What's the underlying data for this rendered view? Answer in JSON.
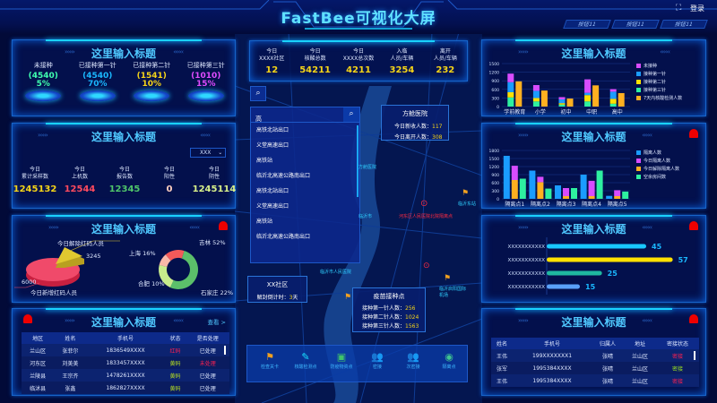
{
  "header": {
    "title": "FastBee可视化大屏",
    "login": "登录",
    "buttons": [
      "按钮11",
      "按钮11",
      "按钮11"
    ]
  },
  "colors": {
    "accent": "#4fc8ff",
    "yellow": "#f5d418",
    "red": "#ff3a5a",
    "green": "#5fc96a",
    "bg": "#020a38"
  },
  "vaccine": {
    "title": "这里输入标题",
    "items": [
      {
        "label": "未接种",
        "count": "(4540)",
        "pct": "5%",
        "color": "#3fffb0"
      },
      {
        "label": "已接种第一针",
        "count": "(4540)",
        "pct": "70%",
        "color": "#1ab8ff"
      },
      {
        "label": "已接种第二针",
        "count": "(1541)",
        "pct": "10%",
        "color": "#f5d418"
      },
      {
        "label": "已接种第三针",
        "count": "(1010)",
        "pct": "15%",
        "color": "#e04cff"
      }
    ]
  },
  "samples": {
    "title": "这里输入标题",
    "select": "XXX",
    "items": [
      {
        "l1": "今日",
        "l2": "累计采样数",
        "value": "1245132",
        "color": "#f5d418"
      },
      {
        "l1": "今日",
        "l2": "上机数",
        "value": "12544",
        "color": "#ff4a5e"
      },
      {
        "l1": "今日",
        "l2": "报告数",
        "value": "12345",
        "color": "#4fc46a"
      },
      {
        "l1": "今日",
        "l2": "阳性",
        "value": "0",
        "color": "#ffd0c0"
      },
      {
        "l1": "今日",
        "l2": "阴性",
        "value": "1245114",
        "color": "#d8f08a"
      }
    ]
  },
  "redcode": {
    "title": "这里输入标题",
    "pie": {
      "added_label": "今日新增红码人员",
      "added": 6000,
      "removed_label": "今日解除红码人员",
      "removed": 3245
    },
    "donut": [
      {
        "name": "吉林",
        "pct": 52,
        "color": "#5bbf6a"
      },
      {
        "name": "石家庄",
        "pct": 22,
        "color": "#c8ec8c"
      },
      {
        "name": "合肥",
        "pct": 10,
        "color": "#f8b8a8"
      },
      {
        "name": "上海",
        "pct": 16,
        "color": "#f25a5a"
      }
    ]
  },
  "lefttable": {
    "title": "这里输入标题",
    "view": "查看 >",
    "headers": [
      "地区",
      "姓名",
      "手机号",
      "状态",
      "是否处理"
    ],
    "rows": [
      [
        "兰山区",
        "张菲尔",
        "1836549XXXX",
        "红码",
        "已处理"
      ],
      [
        "河东区",
        "刘美美",
        "1833457XXXX",
        "黄码",
        "未处理"
      ],
      [
        "兰陵县",
        "王宗齐",
        "1478261XXXX",
        "黄码",
        "已处理"
      ],
      [
        "临沭县",
        "张鑫",
        "1862827XXXX",
        "黄码",
        "已处理"
      ]
    ]
  },
  "stats": [
    {
      "l1": "今日",
      "l2": "XXXX社区",
      "value": "12"
    },
    {
      "l1": "今日",
      "l2": "核酸总数",
      "value": "54211"
    },
    {
      "l1": "今日",
      "l2": "XXXX总次数",
      "value": "4211"
    },
    {
      "l1": "入临",
      "l2": "人员/车辆",
      "value": "3254"
    },
    {
      "l1": "离开",
      "l2": "人员/车辆",
      "value": "232"
    }
  ],
  "search": {
    "value": "高",
    "results": [
      "高铁北站出口",
      "义堂高速出口",
      "高铁站",
      "临沂北高速公路南出口",
      "高铁北站出口",
      "义堂高速出口",
      "高铁站",
      "临沂北高速公路南出口"
    ]
  },
  "popups": {
    "hospital": {
      "title": "方舱医院",
      "r1_label": "今日新收人数：",
      "r1": "117",
      "r2_label": "今日离开人数：",
      "r2": "308"
    },
    "community": {
      "title": "XX社区",
      "label": "解封倒计时：",
      "value": "3",
      "unit": "天"
    },
    "vaccination": {
      "title": "疫苗接种点",
      "rows": [
        {
          "label": "接种第一针人数：",
          "value": "256"
        },
        {
          "label": "接种第二针人数：",
          "value": "1024"
        },
        {
          "label": "接种第三针人数：",
          "value": "1563"
        }
      ]
    }
  },
  "map": {
    "labels": [
      "方舱医院",
      "河东区人民医院北院隔离点",
      "临沂东站",
      "临沂市",
      "临沂市人民医院",
      "临沂启阳国际机场"
    ]
  },
  "toolbar": [
    {
      "label": "检查关卡",
      "icon": "flag-icon",
      "color": "#f0a020"
    },
    {
      "label": "核酸检测点",
      "icon": "test-tube-icon",
      "color": "#19e0ff"
    },
    {
      "label": "防疫物资点",
      "icon": "box-icon",
      "color": "#3fc46a"
    },
    {
      "label": "密接",
      "icon": "people-icon",
      "color": "#ff3030"
    },
    {
      "label": "次密接",
      "icon": "people-icon",
      "color": "#f0a020"
    },
    {
      "label": "隔离点",
      "icon": "location-icon",
      "color": "#3fc490"
    }
  ],
  "chart_data": [
    {
      "type": "bar",
      "title": "这里输入标题",
      "categories": [
        "学前教育",
        "小学",
        "初中",
        "中职",
        "高中"
      ],
      "ylim": [
        0,
        1500
      ],
      "yticks": [
        0,
        300,
        600,
        900,
        1200,
        1500
      ],
      "series": [
        {
          "name": "未接种",
          "color": "#d84cff",
          "stack": "a",
          "values": [
            300,
            200,
            80,
            470,
            90
          ]
        },
        {
          "name": "接种第一针",
          "color": "#1a9cff",
          "stack": "a",
          "values": [
            350,
            250,
            130,
            80,
            250
          ]
        },
        {
          "name": "接种第二针",
          "color": "#ffe000",
          "stack": "a",
          "values": [
            180,
            120,
            50,
            220,
            170
          ]
        },
        {
          "name": "接种第三针",
          "color": "#2ef0a0",
          "stack": "a",
          "values": [
            320,
            180,
            70,
            180,
            100
          ]
        },
        {
          "name": "7天内核酸检测人数",
          "color": "#ffb020",
          "stack": "b",
          "values": [
            880,
            560,
            280,
            740,
            470
          ]
        }
      ]
    },
    {
      "type": "bar",
      "title": "这里输入标题",
      "categories": [
        "隔离点1",
        "隔离点2",
        "隔离点3",
        "隔离点4",
        "隔离点5"
      ],
      "ylim": [
        0,
        1800
      ],
      "yticks": [
        0,
        300,
        600,
        900,
        1200,
        1500,
        1800
      ],
      "series": [
        {
          "name": "隔离人数",
          "color": "#1a9cff",
          "stack": "a",
          "values": [
            1600,
            1050,
            500,
            900,
            110
          ]
        },
        {
          "name": "今日隔离人数",
          "color": "#d84cff",
          "stack": "b",
          "values": [
            530,
            200,
            300,
            570,
            220
          ]
        },
        {
          "name": "今日解除隔离人数",
          "color": "#ffb020",
          "stack": "b",
          "values": [
            700,
            620,
            100,
            100,
            100
          ]
        },
        {
          "name": "空余房间数",
          "color": "#2ef0a0",
          "stack": "c",
          "values": [
            750,
            380,
            400,
            1050,
            270
          ]
        }
      ]
    },
    {
      "type": "bar",
      "orientation": "horizontal",
      "title": "这里输入标题",
      "categories": [
        "XXXXXXXXXXX",
        "XXXXXXXXXXX",
        "XXXXXXXXXXX",
        "XXXXXXXXXXX"
      ],
      "values": [
        45,
        57,
        25,
        15
      ],
      "colors": [
        "#19c8ff",
        "#ffe000",
        "#1fb8a0",
        "#5aa0f8"
      ],
      "xlim": [
        0,
        60
      ]
    }
  ],
  "righttable": {
    "title": "这里输入标题",
    "headers": [
      "姓名",
      "手机号",
      "归属人",
      "地址",
      "密接状态"
    ],
    "rows": [
      [
        "王伟",
        "199XXXXXXX1",
        "张晴",
        "兰山区",
        "密接"
      ],
      [
        "张军",
        "1995384XXXX",
        "张晴",
        "兰山区",
        "密接"
      ],
      [
        "王伟",
        "1995384XXXX",
        "张晴",
        "兰山区",
        "密接"
      ]
    ],
    "status_colors": [
      "#ff2050",
      "#9ae020",
      "#ff2050"
    ]
  }
}
